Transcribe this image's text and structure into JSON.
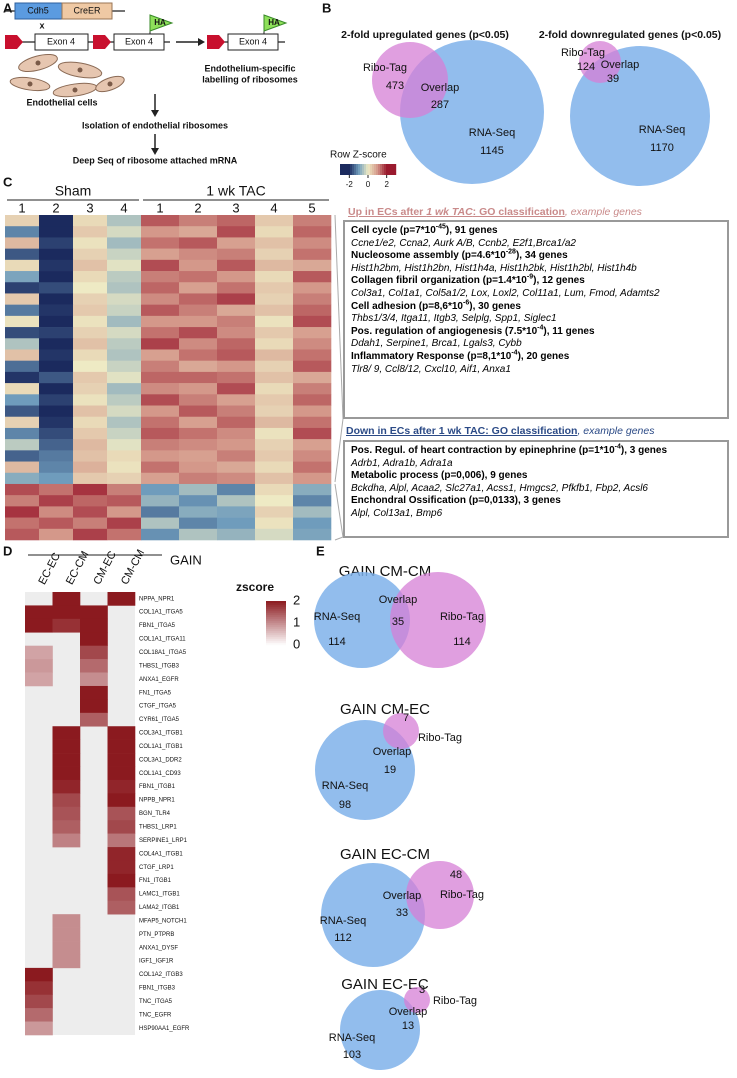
{
  "panel_letters": [
    "A",
    "B",
    "C",
    "D",
    "E"
  ],
  "panel_a": {
    "cdh5": "Cdh5",
    "creer": "CreER",
    "cross": "x",
    "exon_labels": [
      "Exon 4",
      "Exon 4",
      "Exon 4"
    ],
    "ha_labels": [
      "HA",
      "HA"
    ],
    "cells_label": "Endothelial cells",
    "labelling": [
      "Endothelium-specific",
      "labelling of ribosomes"
    ],
    "step1": "Isolation of endothelial ribosomes",
    "step2": "Deep Seq of ribosome attached mRNA"
  },
  "panel_b": {
    "venns": [
      {
        "title": "2-fold upregulated genes (p<0.05)",
        "a": {
          "label": "Ribo-Tag",
          "value": 473
        },
        "overlap": {
          "label": "Overlap",
          "value": 287
        },
        "b": {
          "label": "RNA-Seq",
          "value": 1145
        }
      },
      {
        "title": "2-fold downregulated genes (p<0.05)",
        "a": {
          "label": "Ribo-Tag",
          "value": 124
        },
        "overlap": {
          "label": "Overlap",
          "value": 39
        },
        "b": {
          "label": "RNA-Seq",
          "value": 1170
        }
      }
    ]
  },
  "panel_c": {
    "groups": [
      {
        "name": "Sham",
        "columns": [
          "1",
          "2",
          "3",
          "4"
        ]
      },
      {
        "name": "1 wk TAC",
        "columns": [
          "1",
          "2",
          "3",
          "4",
          "5"
        ]
      }
    ],
    "legend": {
      "title": "Row Z-score",
      "range": [
        -3,
        3
      ],
      "ticks": [
        -2,
        0,
        2
      ]
    },
    "heatmap": [
      [
        0.3,
        -2,
        0.2,
        -0.5,
        1.5,
        1.2,
        1.4,
        0.4,
        1.2
      ],
      [
        -1.2,
        -2,
        0.4,
        -0.2,
        1.0,
        0.8,
        1.6,
        0.2,
        1.4
      ],
      [
        0.6,
        -1.8,
        0.1,
        -0.6,
        1.3,
        1.5,
        0.9,
        0.5,
        1.1
      ],
      [
        -1.6,
        -2,
        0.3,
        -0.3,
        0.9,
        1.1,
        1.2,
        0.3,
        1.3
      ],
      [
        0.2,
        -1.9,
        0.5,
        -0.1,
        1.6,
        1.0,
        1.5,
        0.6,
        0.8
      ],
      [
        -0.9,
        -2,
        0.2,
        -0.4,
        1.2,
        1.3,
        1.0,
        0.2,
        1.5
      ],
      [
        -1.8,
        -1.7,
        0.0,
        -0.5,
        1.4,
        0.9,
        1.3,
        0.4,
        1.0
      ],
      [
        0.4,
        -2,
        0.3,
        -0.2,
        1.1,
        1.4,
        1.7,
        0.3,
        1.2
      ],
      [
        -1.3,
        -1.9,
        0.4,
        -0.3,
        1.5,
        1.2,
        0.8,
        0.5,
        1.4
      ],
      [
        0.1,
        -2,
        0.1,
        -0.6,
        1.0,
        1.0,
        1.2,
        0.1,
        1.6
      ],
      [
        -1.7,
        -1.8,
        0.3,
        -0.2,
        1.3,
        1.6,
        1.1,
        0.4,
        0.9
      ],
      [
        -0.5,
        -2,
        0.5,
        -0.4,
        1.7,
        1.1,
        1.4,
        0.2,
        1.1
      ],
      [
        0.5,
        -1.9,
        0.2,
        -0.5,
        0.9,
        1.3,
        1.5,
        0.6,
        1.3
      ],
      [
        -1.4,
        -2,
        0.0,
        -0.3,
        1.2,
        0.8,
        1.0,
        0.3,
        1.5
      ],
      [
        -1.9,
        -1.6,
        0.4,
        -0.1,
        1.4,
        1.4,
        1.3,
        0.5,
        0.8
      ],
      [
        0.2,
        -2,
        0.3,
        -0.6,
        1.1,
        1.0,
        1.6,
        0.2,
        1.2
      ],
      [
        -1.0,
        -1.8,
        0.1,
        -0.4,
        1.6,
        1.2,
        0.9,
        0.4,
        1.4
      ],
      [
        -1.6,
        -2,
        0.5,
        -0.2,
        1.0,
        1.5,
        1.2,
        0.3,
        1.0
      ],
      [
        0.3,
        -1.9,
        0.2,
        -0.5,
        1.3,
        0.9,
        1.4,
        0.6,
        1.3
      ],
      [
        -1.2,
        -1.7,
        0.4,
        -0.3,
        1.5,
        1.3,
        1.1,
        0.1,
        1.6
      ],
      [
        -0.4,
        -1.5,
        0.6,
        -0.1,
        1.2,
        1.1,
        1.0,
        0.3,
        0.9
      ],
      [
        -1.5,
        -1.3,
        0.5,
        0.2,
        1.0,
        0.9,
        1.2,
        0.4,
        1.1
      ],
      [
        0.6,
        -1.2,
        0.7,
        0.1,
        1.3,
        1.0,
        0.8,
        0.2,
        1.3
      ],
      [
        -0.8,
        -1.0,
        0.4,
        0.3,
        0.9,
        1.2,
        1.1,
        0.5,
        1.0
      ],
      [
        1.6,
        1.3,
        1.8,
        1.2,
        -1.0,
        -0.6,
        -1.2,
        0.2,
        -0.8
      ],
      [
        1.2,
        1.7,
        1.4,
        1.5,
        -0.7,
        -1.1,
        -0.5,
        0.0,
        -1.2
      ],
      [
        1.8,
        1.1,
        1.6,
        1.0,
        -1.3,
        -0.8,
        -0.9,
        0.3,
        -0.6
      ],
      [
        1.3,
        1.5,
        1.2,
        1.7,
        -0.5,
        -1.2,
        -1.0,
        0.1,
        -1.0
      ],
      [
        1.5,
        1.0,
        1.7,
        1.3,
        -1.1,
        -0.5,
        -0.7,
        -0.2,
        -0.9
      ]
    ],
    "up": {
      "header": {
        "lead": "Up in ECs after ",
        "emph": "1 wk TAC",
        "mid": ": GO classification",
        "tail": ", example genes"
      },
      "terms": [
        {
          "title": "Cell cycle (p=7*10",
          "exp": "-45",
          "tail": "), 91 genes",
          "genes": "Ccne1/e2, Ccna2, Aurk A/B, Ccnb2, E2f1,Brca1/a2"
        },
        {
          "title": "Nucleosome assembly (p=4.6*10",
          "exp": "-28",
          "tail": "), 34 genes",
          "genes": "Hist1h2bm, Hist1h2bn, Hist1h4a, Hist1h2bk, Hist1h2bl, Hist1h4b"
        },
        {
          "title": "Collagen fibril organization (p=1.4*10",
          "exp": "-9",
          "tail": "), 12 genes",
          "genes": "Col3a1, Col1a1, Col5a1/2, Lox, Loxl2, Col11a1, Lum, Fmod, Adamts2"
        },
        {
          "title": "Cell adhesion (p=8,6*10",
          "exp": "-6",
          "tail": "), 30 genes",
          "genes": "Thbs1/3/4, Itga11, Itgb3, Selplg, Spp1, Siglec1"
        },
        {
          "title": "Pos. regulation of angiogenesis (7.5*10",
          "exp": "-4",
          "tail": "), 11 genes",
          "genes": "Ddah1, Serpine1, Brca1, Lgals3, Cybb"
        },
        {
          "title": "Inflammatory Response (p=8,1*10",
          "exp": "-4",
          "tail": "), 20 genes",
          "genes": "Tlr8/ 9, Ccl8/12, Cxcl10, Aif1, Anxa1"
        }
      ]
    },
    "down": {
      "header": {
        "lead": "Down in ECs after 1 wk TAC: GO classification",
        "tail": ", example genes"
      },
      "terms": [
        {
          "title": "Pos. Regul. of heart contraction by epinephrine (p=1*10",
          "exp": "-4",
          "tail": "), 3 genes",
          "genes": "Adrb1, Adra1b, Adra1a"
        },
        {
          "title": "Metabolic process (p=0,006), 9 genes",
          "genes": "Bckdha, Alpl, Acaa2, Slc27a1, Acss1, Hmgcs2, Pfkfb1, Fbp2, Acsl6"
        },
        {
          "title": "Enchondral Ossification (p=0,0133), 3 genes",
          "genes": "Alpl, Col13a1, Bmp6"
        }
      ]
    }
  },
  "panel_d": {
    "group": "GAIN",
    "columns": [
      "EC-EC",
      "EC-CM",
      "CM-EC",
      "CM-CM"
    ],
    "legend": {
      "title": "zscore",
      "range": [
        0,
        2
      ],
      "ticks": [
        2,
        1,
        0
      ]
    },
    "rows": [
      {
        "label": "NPPA_NPR1",
        "values": [
          null,
          2,
          null,
          2
        ]
      },
      {
        "label": "COL1A1_ITGA5",
        "values": [
          2,
          2,
          2,
          null
        ]
      },
      {
        "label": "FBN1_ITGA5",
        "values": [
          2,
          1.8,
          2,
          null
        ]
      },
      {
        "label": "COL1A1_ITGA11",
        "values": [
          null,
          null,
          2,
          null
        ]
      },
      {
        "label": "COL18A1_ITGA5",
        "values": [
          0.8,
          null,
          1.6,
          null
        ]
      },
      {
        "label": "THBS1_ITGB3",
        "values": [
          0.9,
          null,
          1.3,
          null
        ]
      },
      {
        "label": "ANXA1_EGFR",
        "values": [
          0.8,
          null,
          1.0,
          null
        ]
      },
      {
        "label": "FN1_ITGA5",
        "values": [
          null,
          null,
          2,
          null
        ]
      },
      {
        "label": "CTGF_ITGA5",
        "values": [
          null,
          null,
          2,
          null
        ]
      },
      {
        "label": "CYR61_ITGA5",
        "values": [
          null,
          null,
          1.4,
          null
        ]
      },
      {
        "label": "COL3A1_ITGB1",
        "values": [
          null,
          2,
          null,
          2
        ]
      },
      {
        "label": "COL1A1_ITGB1",
        "values": [
          null,
          2,
          null,
          2
        ]
      },
      {
        "label": "COL3A1_DDR2",
        "values": [
          null,
          2,
          null,
          2
        ]
      },
      {
        "label": "COL1A1_CD93",
        "values": [
          null,
          2,
          null,
          2
        ]
      },
      {
        "label": "FBN1_ITGB1",
        "values": [
          null,
          1.9,
          null,
          1.9
        ]
      },
      {
        "label": "NPPB_NPR1",
        "values": [
          null,
          1.6,
          null,
          2
        ]
      },
      {
        "label": "BGN_TLR4",
        "values": [
          null,
          1.5,
          null,
          1.5
        ]
      },
      {
        "label": "THBS1_LRP1",
        "values": [
          null,
          1.4,
          null,
          1.6
        ]
      },
      {
        "label": "SERPINE1_LRP1",
        "values": [
          null,
          1.1,
          null,
          1.2
        ]
      },
      {
        "label": "COL4A1_ITGB1",
        "values": [
          null,
          null,
          null,
          1.9
        ]
      },
      {
        "label": "CTGF_LRP1",
        "values": [
          null,
          null,
          null,
          1.9
        ]
      },
      {
        "label": "FN1_ITGB1",
        "values": [
          null,
          null,
          null,
          2
        ]
      },
      {
        "label": "LAMC1_ITGB1",
        "values": [
          null,
          null,
          null,
          1.5
        ]
      },
      {
        "label": "LAMA2_ITGB1",
        "values": [
          null,
          null,
          null,
          1.4
        ]
      },
      {
        "label": "MFAP5_NOTCH1",
        "values": [
          null,
          1.0,
          null,
          null
        ]
      },
      {
        "label": "PTN_PTPRB",
        "values": [
          null,
          1.0,
          null,
          null
        ]
      },
      {
        "label": "ANXA1_DYSF",
        "values": [
          null,
          1.0,
          null,
          null
        ]
      },
      {
        "label": "IGF1_IGF1R",
        "values": [
          null,
          1.0,
          null,
          null
        ]
      },
      {
        "label": "COL1A2_ITGB3",
        "values": [
          2,
          null,
          null,
          null
        ]
      },
      {
        "label": "FBN1_ITGB3",
        "values": [
          1.8,
          null,
          null,
          null
        ]
      },
      {
        "label": "TNC_ITGA5",
        "values": [
          1.6,
          null,
          null,
          null
        ]
      },
      {
        "label": "TNC_EGFR",
        "values": [
          1.3,
          null,
          null,
          null
        ]
      },
      {
        "label": "HSP90AA1_EGFR",
        "values": [
          0.9,
          null,
          null,
          null
        ]
      }
    ]
  },
  "panel_e": {
    "venns": [
      {
        "title": "GAIN CM-CM",
        "a": {
          "label": "RNA-Seq",
          "value": 114
        },
        "overlap": {
          "label": "Overlap",
          "value": 35
        },
        "b": {
          "label": "Ribo-Tag",
          "value": 114
        }
      },
      {
        "title": "GAIN CM-EC",
        "a": {
          "label": "RNA-Seq",
          "value": 98
        },
        "overlap": {
          "label": "Overlap",
          "value": 19
        },
        "b": {
          "label": "Ribo-Tag",
          "value": 7
        }
      },
      {
        "title": "GAIN EC-CM",
        "a": {
          "label": "RNA-Seq",
          "value": 112
        },
        "overlap": {
          "label": "Overlap",
          "value": 33
        },
        "b": {
          "label": "Ribo-Tag",
          "value": 48
        }
      },
      {
        "title": "GAIN EC-EC",
        "a": {
          "label": "RNA-Seq",
          "value": 103
        },
        "overlap": {
          "label": "Overlap",
          "value": 13
        },
        "b": {
          "label": "Ribo-Tag",
          "value": 3
        }
      }
    ]
  }
}
